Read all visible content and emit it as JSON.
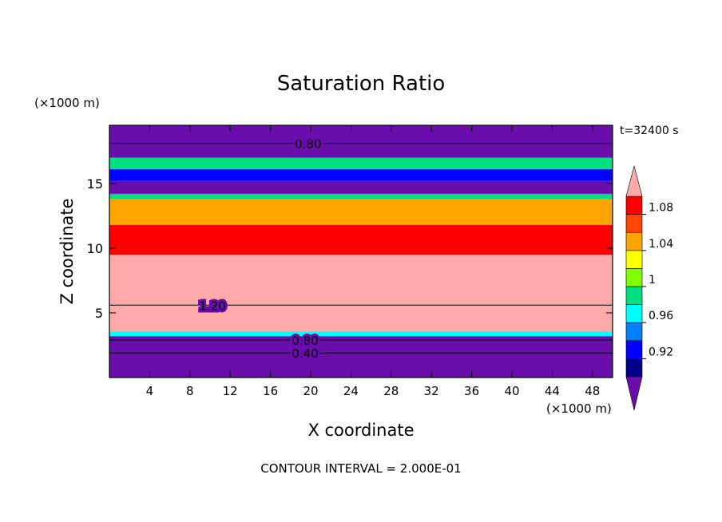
{
  "chart_data": {
    "type": "heatmap",
    "title": "Saturation Ratio",
    "xlabel": "X coordinate",
    "ylabel": "Z coordinate",
    "x_units": "(×1000 m)",
    "y_units": "(×1000 m)",
    "xlim": [
      0,
      50
    ],
    "ylim": [
      0,
      19.5
    ],
    "x_ticks": [
      4,
      8,
      12,
      16,
      20,
      24,
      28,
      32,
      36,
      40,
      44,
      48
    ],
    "y_ticks": [
      5,
      10,
      15
    ],
    "time_label": "t=32400 s",
    "footer": "CONTOUR INTERVAL = 2.000E-01",
    "colorbar": {
      "levels": [
        0.9,
        0.92,
        0.94,
        0.96,
        0.98,
        1.0,
        1.02,
        1.04,
        1.06,
        1.08,
        1.1
      ],
      "tick_values": [
        0.92,
        0.96,
        1.0,
        1.04,
        1.08
      ],
      "tick_labels": [
        "0.92",
        "0.96",
        "1",
        "1.04",
        "1.08"
      ],
      "colors": [
        "#6a0dad",
        "#00008b",
        "#0000ff",
        "#0080ff",
        "#00ffff",
        "#00e080",
        "#7fff00",
        "#ffff00",
        "#ffa500",
        "#ff4500",
        "#ff0000",
        "#ffaaaa"
      ],
      "extend": "both"
    },
    "contour_labels": [
      {
        "text": "0.80",
        "x": 18.0,
        "z": 18.1
      },
      {
        "text": "1.20",
        "x": 8.5,
        "z": 5.6
      },
      {
        "text": "0.80",
        "x": 17.7,
        "z": 2.9
      },
      {
        "text": "0.40",
        "x": 17.7,
        "z": 1.9
      }
    ],
    "profile": [
      {
        "z_bottom": 0.0,
        "z_top": 3.2,
        "value": 0.85
      },
      {
        "z_bottom": 3.2,
        "z_top": 3.55,
        "value": 0.97
      },
      {
        "z_bottom": 3.55,
        "z_top": 9.5,
        "value": 1.15
      },
      {
        "z_bottom": 9.5,
        "z_top": 11.8,
        "value": 1.08
      },
      {
        "z_bottom": 11.8,
        "z_top": 13.8,
        "value": 1.04
      },
      {
        "z_bottom": 13.8,
        "z_top": 14.2,
        "value": 0.99
      },
      {
        "z_bottom": 14.2,
        "z_top": 15.2,
        "value": 0.88
      },
      {
        "z_bottom": 15.2,
        "z_top": 16.1,
        "value": 0.93
      },
      {
        "z_bottom": 16.1,
        "z_top": 17.0,
        "value": 0.98
      },
      {
        "z_bottom": 17.0,
        "z_top": 19.5,
        "value": 0.88
      }
    ]
  }
}
